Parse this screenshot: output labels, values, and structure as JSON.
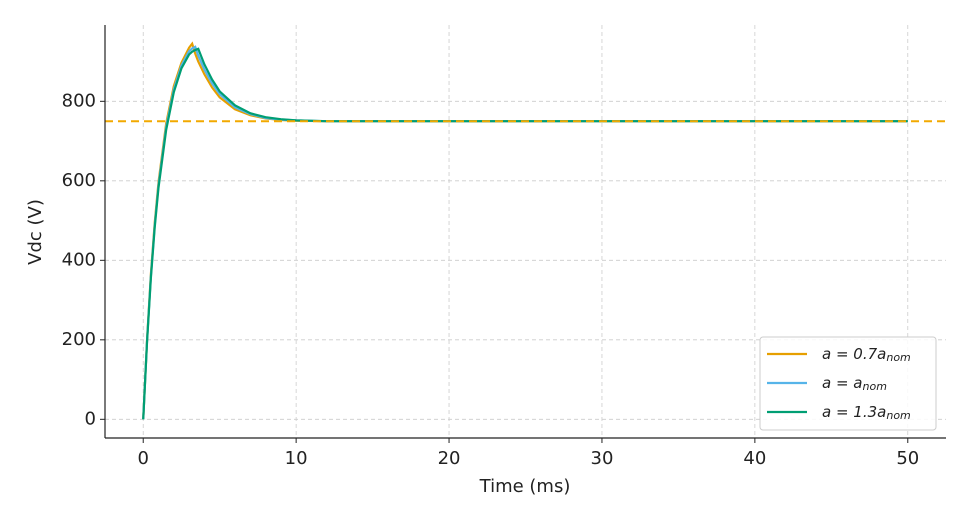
{
  "chart_data": {
    "type": "line",
    "x_label": "Time (ms)",
    "y_label": "Vdc (V)",
    "x": [
      0,
      0.25,
      0.5,
      0.75,
      1,
      1.5,
      2,
      2.5,
      3,
      3.2,
      3.4,
      3.6,
      4,
      4.5,
      5,
      6,
      7,
      8,
      9,
      10,
      12,
      15,
      20,
      30,
      40,
      50
    ],
    "series": [
      {
        "name": "a = 0.7a",
        "name_subscript": "nom",
        "color": "#e69f00",
        "values": [
          0,
          200,
          365,
          494,
          597,
          744,
          838,
          897,
          935,
          945,
          920,
          900,
          868,
          835,
          810,
          780,
          765,
          757,
          753,
          751,
          750,
          750,
          750,
          750,
          750,
          750
        ]
      },
      {
        "name": "a = a",
        "name_subscript": "nom",
        "color": "#56b4e9",
        "values": [
          0,
          198,
          360,
          488,
          590,
          736,
          830,
          890,
          926,
          933,
          937,
          915,
          880,
          845,
          818,
          785,
          768,
          758,
          754,
          752,
          750,
          750,
          750,
          750,
          750,
          750
        ]
      },
      {
        "name": "a = 1.3a",
        "name_subscript": "nom",
        "color": "#009e73",
        "values": [
          0,
          195,
          355,
          482,
          583,
          728,
          823,
          883,
          918,
          925,
          929,
          932,
          893,
          855,
          825,
          790,
          770,
          760,
          755,
          752,
          750,
          750,
          750,
          750,
          750,
          750
        ]
      }
    ],
    "reference_line": {
      "value": 750,
      "color": "#f2a900",
      "style": "dashed"
    },
    "xlim": [
      -2.5,
      52.5
    ],
    "xticks": [
      0,
      10,
      20,
      30,
      40,
      50
    ],
    "ylim": [
      -47,
      992
    ],
    "yticks": [
      0,
      200,
      400,
      600,
      800
    ],
    "grid": true,
    "legend_position": "lower-right"
  }
}
